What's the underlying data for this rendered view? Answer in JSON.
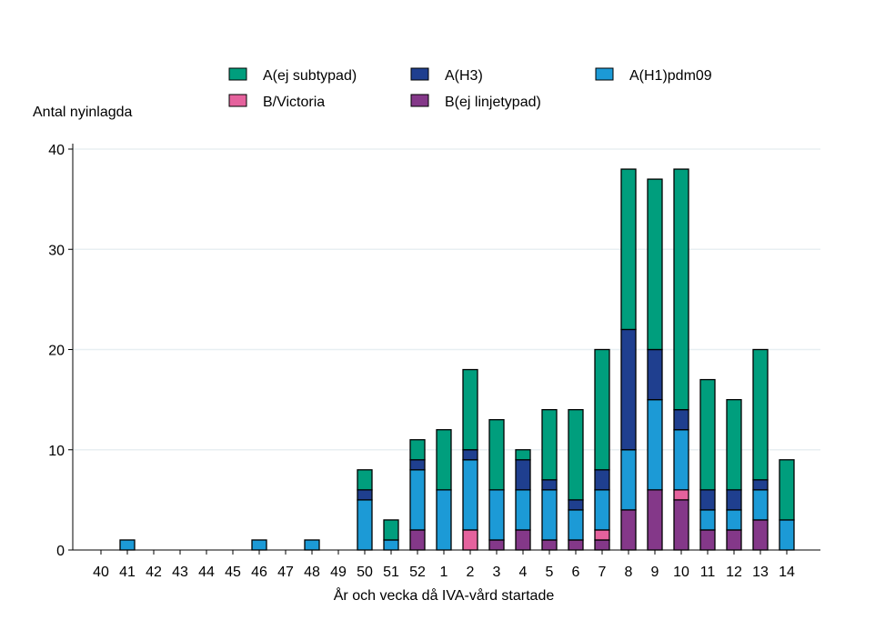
{
  "chart_data": {
    "type": "bar",
    "stacked": true,
    "title": "",
    "xlabel": "År och vecka då IVA-vård startade",
    "ylabel": "Antal nyinlagda",
    "ylim": [
      0,
      40
    ],
    "yticks": [
      0,
      10,
      20,
      30,
      40
    ],
    "grid": "horizontal",
    "legend_position": "top",
    "categories": [
      "40",
      "41",
      "42",
      "43",
      "44",
      "45",
      "46",
      "47",
      "48",
      "49",
      "50",
      "51",
      "52",
      "1",
      "2",
      "3",
      "4",
      "5",
      "6",
      "7",
      "8",
      "9",
      "10",
      "11",
      "12",
      "13",
      "14"
    ],
    "series": [
      {
        "name": "B(ej linjetypad)",
        "color": "#843889",
        "values": [
          0,
          0,
          0,
          0,
          0,
          0,
          0,
          0,
          0,
          0,
          0,
          0,
          2,
          0,
          0,
          1,
          2,
          1,
          1,
          1,
          4,
          6,
          5,
          2,
          2,
          3,
          0
        ]
      },
      {
        "name": "B/Victoria",
        "color": "#E5629D",
        "values": [
          0,
          0,
          0,
          0,
          0,
          0,
          0,
          0,
          0,
          0,
          0,
          0,
          0,
          0,
          2,
          0,
          0,
          0,
          0,
          1,
          0,
          0,
          1,
          0,
          0,
          0,
          0
        ]
      },
      {
        "name": "A(H1)pdm09",
        "color": "#1C9AD6",
        "values": [
          0,
          1,
          0,
          0,
          0,
          0,
          1,
          0,
          1,
          0,
          5,
          1,
          6,
          6,
          7,
          5,
          4,
          5,
          3,
          4,
          6,
          9,
          6,
          2,
          2,
          3,
          3
        ]
      },
      {
        "name": "A(H3)",
        "color": "#1F3F8F",
        "values": [
          0,
          0,
          0,
          0,
          0,
          0,
          0,
          0,
          0,
          0,
          1,
          0,
          1,
          0,
          1,
          0,
          3,
          1,
          1,
          2,
          12,
          5,
          2,
          2,
          2,
          1,
          0
        ]
      },
      {
        "name": "A(ej subtypad)",
        "color": "#009E7D",
        "values": [
          0,
          0,
          0,
          0,
          0,
          0,
          0,
          0,
          0,
          0,
          2,
          2,
          2,
          6,
          8,
          7,
          1,
          7,
          9,
          12,
          16,
          17,
          24,
          11,
          9,
          13,
          6
        ]
      }
    ],
    "legend_order": [
      "A(ej subtypad)",
      "A(H3)",
      "A(H1)pdm09",
      "B/Victoria",
      "B(ej linjetypad)"
    ]
  }
}
